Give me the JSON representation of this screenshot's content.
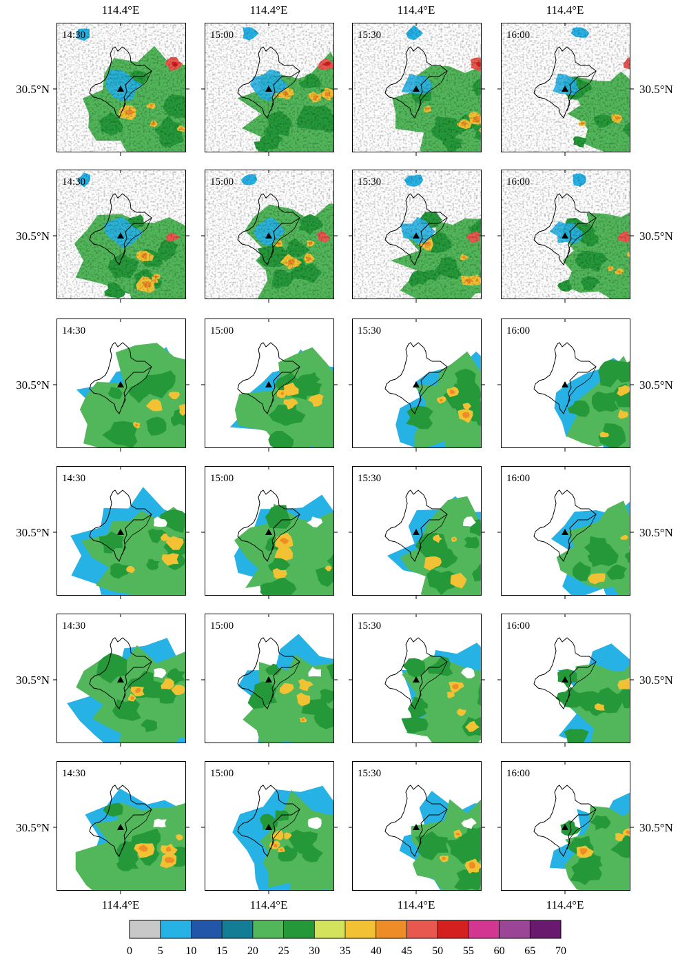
{
  "figure": {
    "lon_label": "114.4°E",
    "lat_label": "30.5°N",
    "times": [
      "14:30",
      "15:00",
      "15:30",
      "16:00"
    ],
    "site_marker": "triangle-icon"
  },
  "panels": [
    [
      {
        "time": "14:30",
        "style": "observed"
      },
      {
        "time": "15:00",
        "style": "observed"
      },
      {
        "time": "15:30",
        "style": "observed"
      },
      {
        "time": "16:00",
        "style": "observed"
      }
    ],
    [
      {
        "time": "14:30",
        "style": "observed"
      },
      {
        "time": "15:00",
        "style": "observed"
      },
      {
        "time": "15:30",
        "style": "observed"
      },
      {
        "time": "16:00",
        "style": "observed"
      }
    ],
    [
      {
        "time": "14:30",
        "style": "smooth"
      },
      {
        "time": "15:00",
        "style": "smooth"
      },
      {
        "time": "15:30",
        "style": "smooth"
      },
      {
        "time": "16:00",
        "style": "smooth"
      }
    ],
    [
      {
        "time": "14:30",
        "style": "smooth"
      },
      {
        "time": "15:00",
        "style": "smooth"
      },
      {
        "time": "15:30",
        "style": "smooth"
      },
      {
        "time": "16:00",
        "style": "smooth"
      }
    ],
    [
      {
        "time": "14:30",
        "style": "smooth"
      },
      {
        "time": "15:00",
        "style": "smooth"
      },
      {
        "time": "15:30",
        "style": "smooth"
      },
      {
        "time": "16:00",
        "style": "smooth"
      }
    ],
    [
      {
        "time": "14:30",
        "style": "smooth"
      },
      {
        "time": "15:00",
        "style": "smooth"
      },
      {
        "time": "15:30",
        "style": "smooth"
      },
      {
        "time": "16:00",
        "style": "smooth"
      }
    ]
  ],
  "colorbar": {
    "ticks": [
      "0",
      "5",
      "10",
      "15",
      "20",
      "25",
      "30",
      "35",
      "40",
      "45",
      "50",
      "55",
      "60",
      "65",
      "70"
    ],
    "colors": [
      "#c8c8c8",
      "#27b2e6",
      "#2256a8",
      "#147d96",
      "#52b75a",
      "#25993a",
      "#d4e35c",
      "#f3c234",
      "#ee8c27",
      "#e9584f",
      "#d42120",
      "#d33690",
      "#9b4596",
      "#6a1a6e"
    ]
  }
}
